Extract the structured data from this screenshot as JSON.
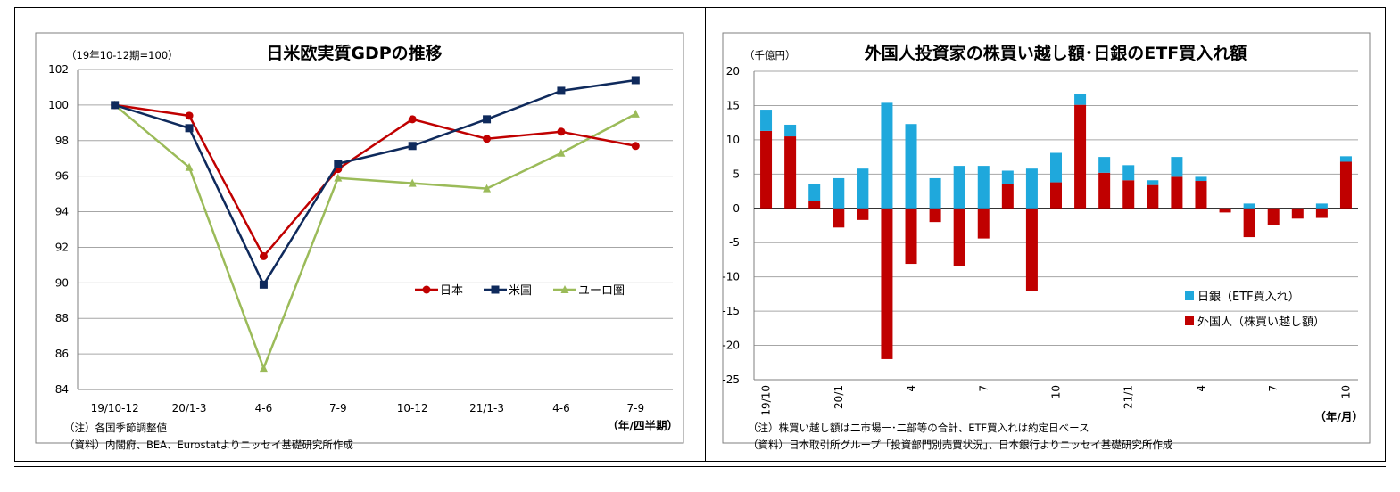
{
  "colors": {
    "japan": "#c00000",
    "us": "#0f2a5c",
    "euro": "#9bbb59",
    "boj": "#1fa8dc",
    "foreign": "#c00000",
    "grid": "#a6a6a6"
  },
  "left": {
    "title": "日米欧実質GDPの推移",
    "unit_label": "（19年10-12期=100）",
    "x_unit": "（年/四半期）",
    "note1": "（注）各国季節調整値",
    "note2": "（資料）内閣府、BEA、Eurostatよりニッセイ基礎研究所作成",
    "legend": [
      "日本",
      "米国",
      "ユーロ圏"
    ]
  },
  "right": {
    "title": "外国人投資家の株買い越し額･日銀のETF買入れ額",
    "unit_label": "（千億円）",
    "x_unit": "（年/月）",
    "note1": "（注）株買い越し額は二市場一･二部等の合計、ETF買入れは約定日ベース",
    "note2": "（資料）日本取引所グループ「投資部門別売買状況」、日本銀行よりニッセイ基礎研究所作成",
    "legend": [
      "日銀（ETF買入れ）",
      "外国人（株買い越し額）"
    ]
  },
  "chart_data": [
    {
      "type": "line",
      "title": "日米欧実質GDPの推移",
      "ylabel": "（19年10-12期=100）",
      "xlabel": "（年/四半期）",
      "categories": [
        "19/10-12",
        "20/1-3",
        "4-6",
        "7-9",
        "10-12",
        "21/1-3",
        "4-6",
        "7-9"
      ],
      "ylim": [
        84,
        102
      ],
      "yticks": [
        84,
        86,
        88,
        90,
        92,
        94,
        96,
        98,
        100,
        102
      ],
      "grid": true,
      "legend_position": "center-right",
      "series": [
        {
          "name": "日本",
          "values": [
            100,
            99.4,
            91.5,
            96.4,
            99.2,
            98.1,
            98.5,
            97.7
          ]
        },
        {
          "name": "米国",
          "values": [
            100,
            98.7,
            89.9,
            96.7,
            97.7,
            99.2,
            100.8,
            101.4
          ]
        },
        {
          "name": "ユーロ圏",
          "values": [
            100,
            96.5,
            85.2,
            95.9,
            95.6,
            95.3,
            97.3,
            99.5
          ]
        }
      ]
    },
    {
      "type": "bar",
      "stacked": true,
      "title": "外国人投資家の株買い越し額･日銀のETF買入れ額",
      "ylabel": "（千億円）",
      "xlabel": "（年/月）",
      "categories": [
        "19/10",
        "11",
        "12",
        "20/1",
        "2",
        "3",
        "4",
        "5",
        "6",
        "7",
        "8",
        "9",
        "10",
        "11",
        "12",
        "21/1",
        "2",
        "3",
        "4",
        "5",
        "6",
        "7",
        "8",
        "9",
        "10"
      ],
      "x_tick_labels": [
        "19/10",
        "20/1",
        "4",
        "7",
        "10",
        "21/1",
        "4",
        "7",
        "10"
      ],
      "ylim": [
        -25,
        20
      ],
      "yticks": [
        -25,
        -20,
        -15,
        -10,
        -5,
        0,
        5,
        10,
        15,
        20
      ],
      "grid": true,
      "legend_position": "bottom-right",
      "series": [
        {
          "name": "外国人（株買い越し額）",
          "values": [
            11.3,
            10.5,
            1.1,
            -2.8,
            -1.7,
            -22.0,
            -8.1,
            -2.0,
            -8.4,
            -4.4,
            3.5,
            -12.1,
            3.8,
            15.1,
            5.2,
            4.1,
            3.4,
            4.6,
            4.0,
            -0.6,
            -4.2,
            -2.4,
            -1.5,
            -1.4,
            6.8
          ]
        },
        {
          "name": "日銀（ETF買入れ）",
          "values": [
            3.1,
            1.7,
            2.4,
            4.4,
            5.8,
            15.4,
            12.3,
            4.4,
            6.2,
            6.2,
            2.0,
            5.8,
            4.3,
            1.6,
            2.3,
            2.2,
            0.7,
            2.9,
            0.6,
            0.0,
            0.7,
            0.0,
            0.0,
            0.7,
            0.8
          ]
        }
      ]
    }
  ]
}
